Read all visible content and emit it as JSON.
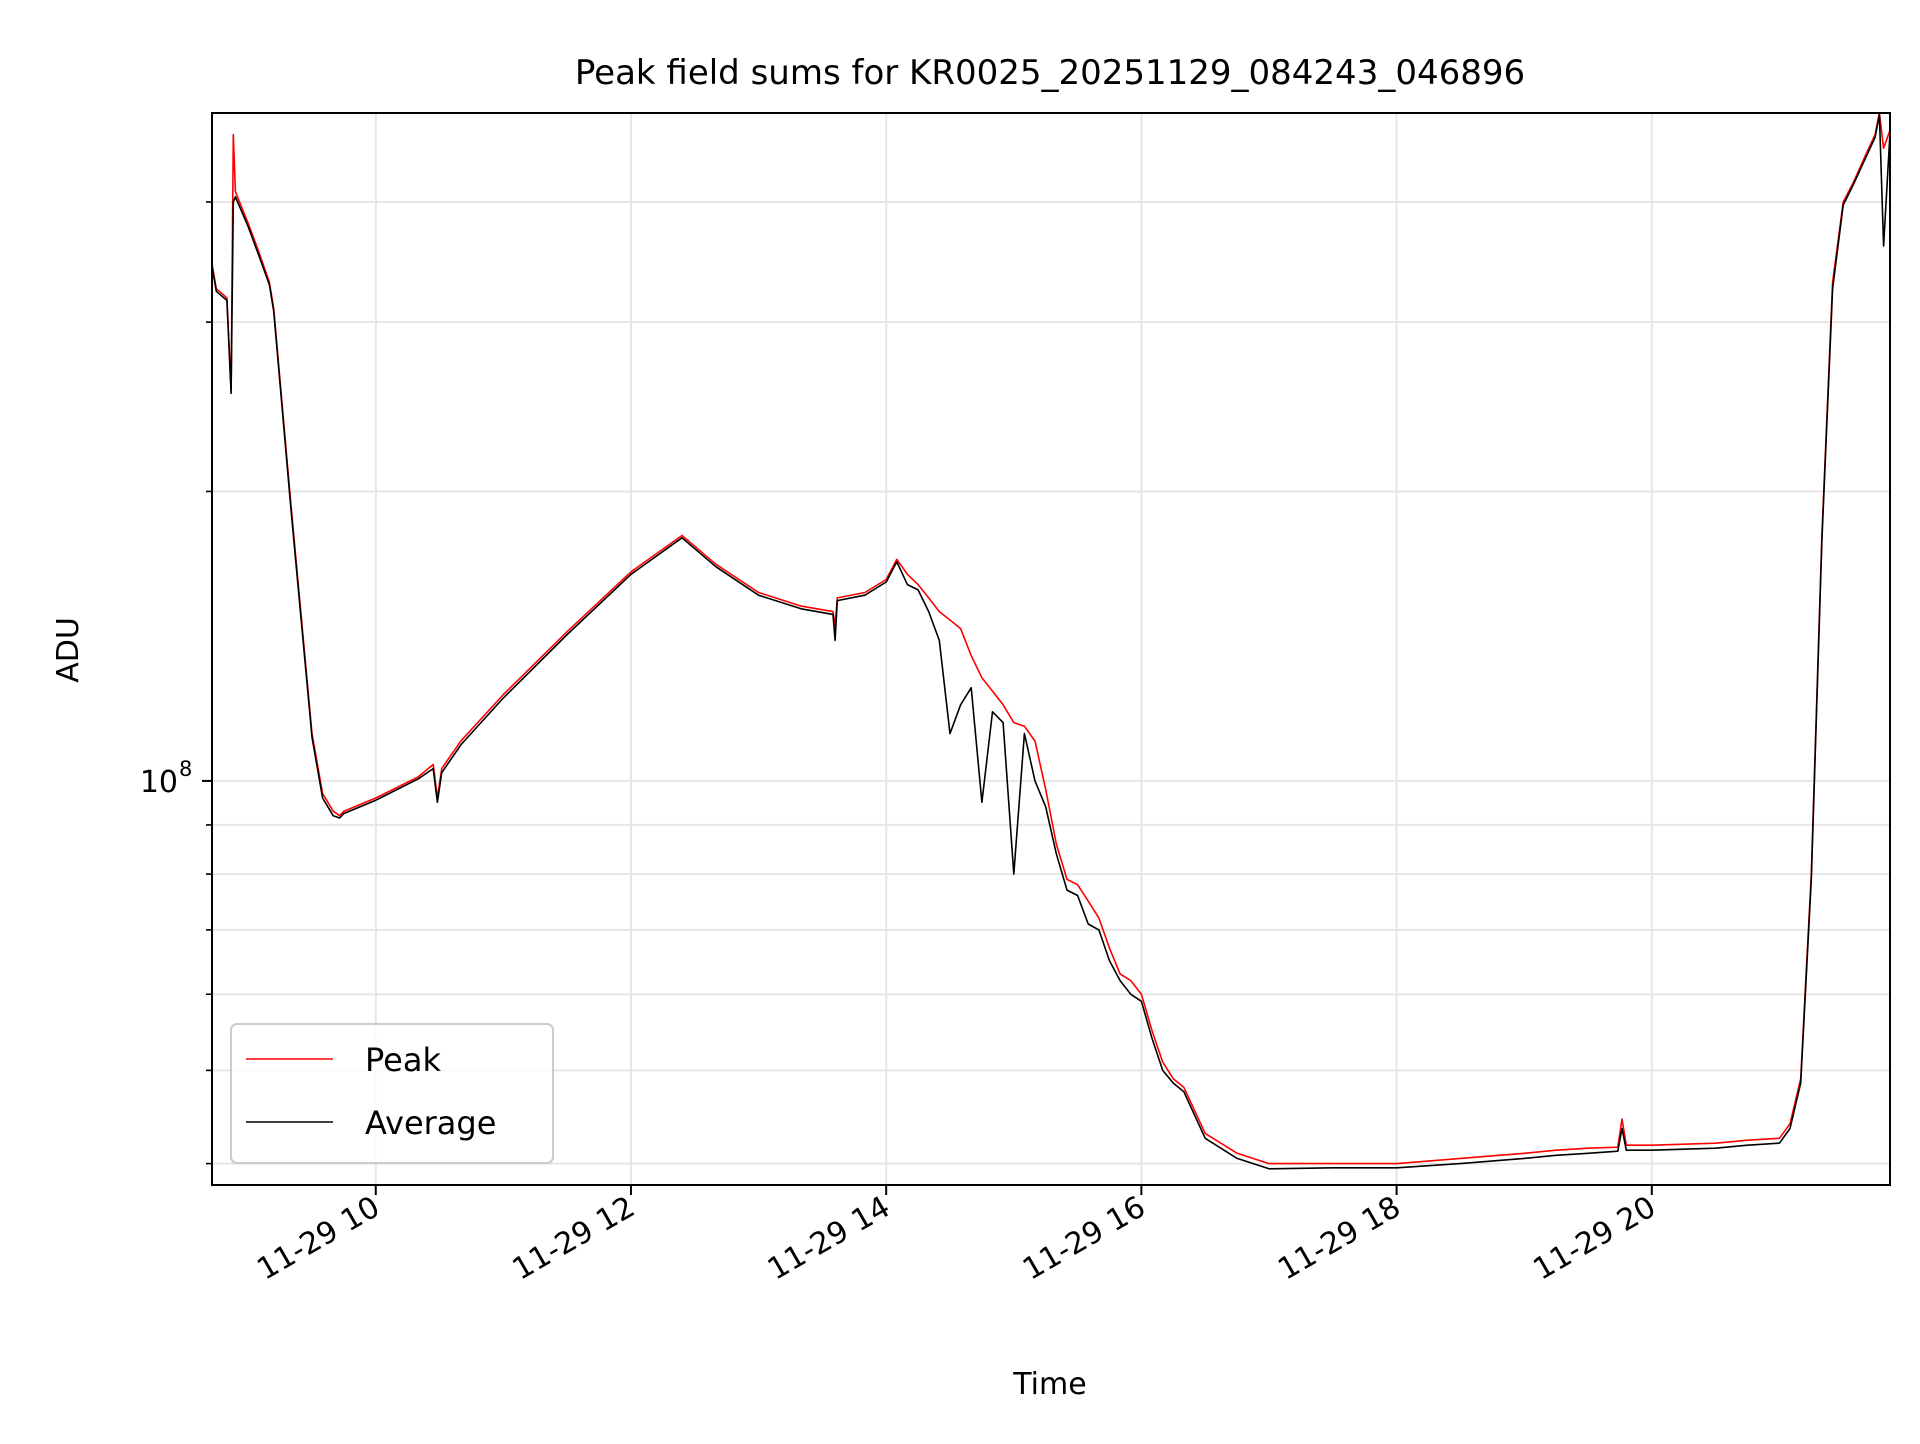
{
  "chart_data": {
    "type": "line",
    "title": "Peak field sums for KR0025_20251129_084243_046896",
    "xlabel": "Time",
    "ylabel": "ADU",
    "x_scale": "time",
    "y_scale": "log",
    "xlim": [
      "2025-11-29T08:43",
      "2025-11-29T21:52"
    ],
    "ylim": [
      38000000,
      495000000
    ],
    "x_ticks": [
      "2025-11-29T10:00",
      "2025-11-29T12:00",
      "2025-11-29T14:00",
      "2025-11-29T16:00",
      "2025-11-29T18:00",
      "2025-11-29T20:00"
    ],
    "x_tick_labels": [
      "11-29 10",
      "11-29 12",
      "11-29 14",
      "11-29 16",
      "11-29 18",
      "11-29 20"
    ],
    "y_major_ticks": [
      100000000
    ],
    "y_major_tick_labels": [
      {
        "base": "10",
        "exp": "8"
      }
    ],
    "y_minor_ticks": [
      40000000,
      50000000,
      60000000,
      70000000,
      80000000,
      90000000,
      200000000,
      300000000,
      400000000
    ],
    "grid": true,
    "legend_position": "lower-left",
    "series": [
      {
        "name": "Peak",
        "color": "#ff0000",
        "x": [
          "2025-11-29T08:43",
          "2025-11-29T08:45",
          "2025-11-29T08:50",
          "2025-11-29T08:52",
          "2025-11-29T08:53",
          "2025-11-29T08:54",
          "2025-11-29T09:00",
          "2025-11-29T09:05",
          "2025-11-29T09:10",
          "2025-11-29T09:12",
          "2025-11-29T09:20",
          "2025-11-29T09:30",
          "2025-11-29T09:35",
          "2025-11-29T09:40",
          "2025-11-29T09:43",
          "2025-11-29T09:45",
          "2025-11-29T10:00",
          "2025-11-29T10:20",
          "2025-11-29T10:27",
          "2025-11-29T10:29",
          "2025-11-29T10:31",
          "2025-11-29T10:40",
          "2025-11-29T11:00",
          "2025-11-29T11:30",
          "2025-11-29T12:00",
          "2025-11-29T12:24",
          "2025-11-29T12:40",
          "2025-11-29T13:00",
          "2025-11-29T13:20",
          "2025-11-29T13:35",
          "2025-11-29T13:36",
          "2025-11-29T13:37",
          "2025-11-29T13:50",
          "2025-11-29T14:00",
          "2025-11-29T14:05",
          "2025-11-29T14:10",
          "2025-11-29T14:15",
          "2025-11-29T14:20",
          "2025-11-29T14:25",
          "2025-11-29T14:30",
          "2025-11-29T14:35",
          "2025-11-29T14:40",
          "2025-11-29T14:45",
          "2025-11-29T14:50",
          "2025-11-29T14:55",
          "2025-11-29T15:00",
          "2025-11-29T15:05",
          "2025-11-29T15:10",
          "2025-11-29T15:15",
          "2025-11-29T15:20",
          "2025-11-29T15:25",
          "2025-11-29T15:30",
          "2025-11-29T15:35",
          "2025-11-29T15:40",
          "2025-11-29T15:45",
          "2025-11-29T15:50",
          "2025-11-29T15:55",
          "2025-11-29T16:00",
          "2025-11-29T16:05",
          "2025-11-29T16:10",
          "2025-11-29T16:15",
          "2025-11-29T16:20",
          "2025-11-29T16:30",
          "2025-11-29T16:45",
          "2025-11-29T17:00",
          "2025-11-29T17:30",
          "2025-11-29T18:00",
          "2025-11-29T18:30",
          "2025-11-29T19:00",
          "2025-11-29T19:15",
          "2025-11-29T19:30",
          "2025-11-29T19:44",
          "2025-11-29T19:46",
          "2025-11-29T19:48",
          "2025-11-29T20:00",
          "2025-11-29T20:30",
          "2025-11-29T20:45",
          "2025-11-29T21:00",
          "2025-11-29T21:05",
          "2025-11-29T21:10",
          "2025-11-29T21:15",
          "2025-11-29T21:20",
          "2025-11-29T21:25",
          "2025-11-29T21:30",
          "2025-11-29T21:35",
          "2025-11-29T21:40",
          "2025-11-29T21:45",
          "2025-11-29T21:47",
          "2025-11-29T21:49",
          "2025-11-29T21:52"
        ],
        "y": [
          345000000,
          325000000,
          318000000,
          255000000,
          470000000,
          410000000,
          380000000,
          355000000,
          330000000,
          310000000,
          195000000,
          112000000,
          97000000,
          93000000,
          92000000,
          93000000,
          96000000,
          101000000,
          104000000,
          96000000,
          103000000,
          110000000,
          123000000,
          143000000,
          165000000,
          180000000,
          168000000,
          157000000,
          152000000,
          150000000,
          145000000,
          155000000,
          157000000,
          162000000,
          170000000,
          164000000,
          160000000,
          155000000,
          150000000,
          147000000,
          144000000,
          135000000,
          128000000,
          124000000,
          120000000,
          115000000,
          114000000,
          110000000,
          98000000,
          86000000,
          79000000,
          78000000,
          75000000,
          72000000,
          67000000,
          63000000,
          62000000,
          60000000,
          55000000,
          51000000,
          49000000,
          48000000,
          43000000,
          41000000,
          40000000,
          40000000,
          40000000,
          40500000,
          41000000,
          41300000,
          41500000,
          41600000,
          44500000,
          41800000,
          41800000,
          42000000,
          42300000,
          42500000,
          44000000,
          49000000,
          80000000,
          180000000,
          330000000,
          400000000,
          420000000,
          445000000,
          470000000,
          495000000,
          455000000,
          475000000
        ]
      },
      {
        "name": "Average",
        "color": "#000000",
        "x": [
          "2025-11-29T08:43",
          "2025-11-29T08:45",
          "2025-11-29T08:50",
          "2025-11-29T08:52",
          "2025-11-29T08:53",
          "2025-11-29T08:54",
          "2025-11-29T09:00",
          "2025-11-29T09:05",
          "2025-11-29T09:10",
          "2025-11-29T09:12",
          "2025-11-29T09:20",
          "2025-11-29T09:30",
          "2025-11-29T09:35",
          "2025-11-29T09:40",
          "2025-11-29T09:43",
          "2025-11-29T09:45",
          "2025-11-29T10:00",
          "2025-11-29T10:20",
          "2025-11-29T10:27",
          "2025-11-29T10:29",
          "2025-11-29T10:31",
          "2025-11-29T10:40",
          "2025-11-29T11:00",
          "2025-11-29T11:30",
          "2025-11-29T12:00",
          "2025-11-29T12:24",
          "2025-11-29T12:40",
          "2025-11-29T13:00",
          "2025-11-29T13:20",
          "2025-11-29T13:35",
          "2025-11-29T13:36",
          "2025-11-29T13:37",
          "2025-11-29T13:50",
          "2025-11-29T14:00",
          "2025-11-29T14:05",
          "2025-11-29T14:10",
          "2025-11-29T14:15",
          "2025-11-29T14:20",
          "2025-11-29T14:25",
          "2025-11-29T14:30",
          "2025-11-29T14:35",
          "2025-11-29T14:40",
          "2025-11-29T14:45",
          "2025-11-29T14:50",
          "2025-11-29T14:55",
          "2025-11-29T15:00",
          "2025-11-29T15:05",
          "2025-11-29T15:10",
          "2025-11-29T15:15",
          "2025-11-29T15:20",
          "2025-11-29T15:25",
          "2025-11-29T15:30",
          "2025-11-29T15:35",
          "2025-11-29T15:40",
          "2025-11-29T15:45",
          "2025-11-29T15:50",
          "2025-11-29T15:55",
          "2025-11-29T16:00",
          "2025-11-29T16:05",
          "2025-11-29T16:10",
          "2025-11-29T16:15",
          "2025-11-29T16:20",
          "2025-11-29T16:30",
          "2025-11-29T16:45",
          "2025-11-29T17:00",
          "2025-11-29T17:30",
          "2025-11-29T18:00",
          "2025-11-29T18:30",
          "2025-11-29T19:00",
          "2025-11-29T19:15",
          "2025-11-29T19:30",
          "2025-11-29T19:44",
          "2025-11-29T19:46",
          "2025-11-29T19:48",
          "2025-11-29T20:00",
          "2025-11-29T20:30",
          "2025-11-29T20:45",
          "2025-11-29T21:00",
          "2025-11-29T21:05",
          "2025-11-29T21:10",
          "2025-11-29T21:15",
          "2025-11-29T21:20",
          "2025-11-29T21:25",
          "2025-11-29T21:30",
          "2025-11-29T21:35",
          "2025-11-29T21:40",
          "2025-11-29T21:45",
          "2025-11-29T21:47",
          "2025-11-29T21:49",
          "2025-11-29T21:52"
        ],
        "y": [
          343000000,
          323000000,
          316000000,
          253000000,
          400000000,
          405000000,
          377000000,
          352000000,
          328000000,
          308000000,
          193000000,
          111000000,
          96000000,
          92000000,
          91500000,
          92500000,
          95500000,
          100500000,
          103000000,
          95000000,
          102000000,
          109000000,
          122000000,
          142000000,
          164000000,
          179000000,
          167000000,
          156000000,
          151000000,
          149000000,
          140000000,
          154000000,
          156000000,
          161000000,
          169000000,
          160000000,
          158000000,
          150000000,
          140000000,
          112000000,
          120000000,
          125000000,
          95000000,
          118000000,
          115000000,
          80000000,
          112000000,
          100000000,
          94000000,
          84000000,
          77000000,
          76000000,
          71000000,
          70000000,
          65000000,
          62000000,
          60000000,
          59000000,
          54000000,
          50000000,
          48500000,
          47500000,
          42500000,
          40500000,
          39500000,
          39600000,
          39600000,
          40000000,
          40500000,
          40800000,
          41000000,
          41200000,
          43500000,
          41300000,
          41300000,
          41500000,
          41800000,
          42000000,
          43500000,
          48500000,
          79000000,
          178000000,
          325000000,
          397000000,
          418000000,
          442000000,
          467000000,
          493000000,
          360000000,
          472000000
        ]
      }
    ]
  }
}
